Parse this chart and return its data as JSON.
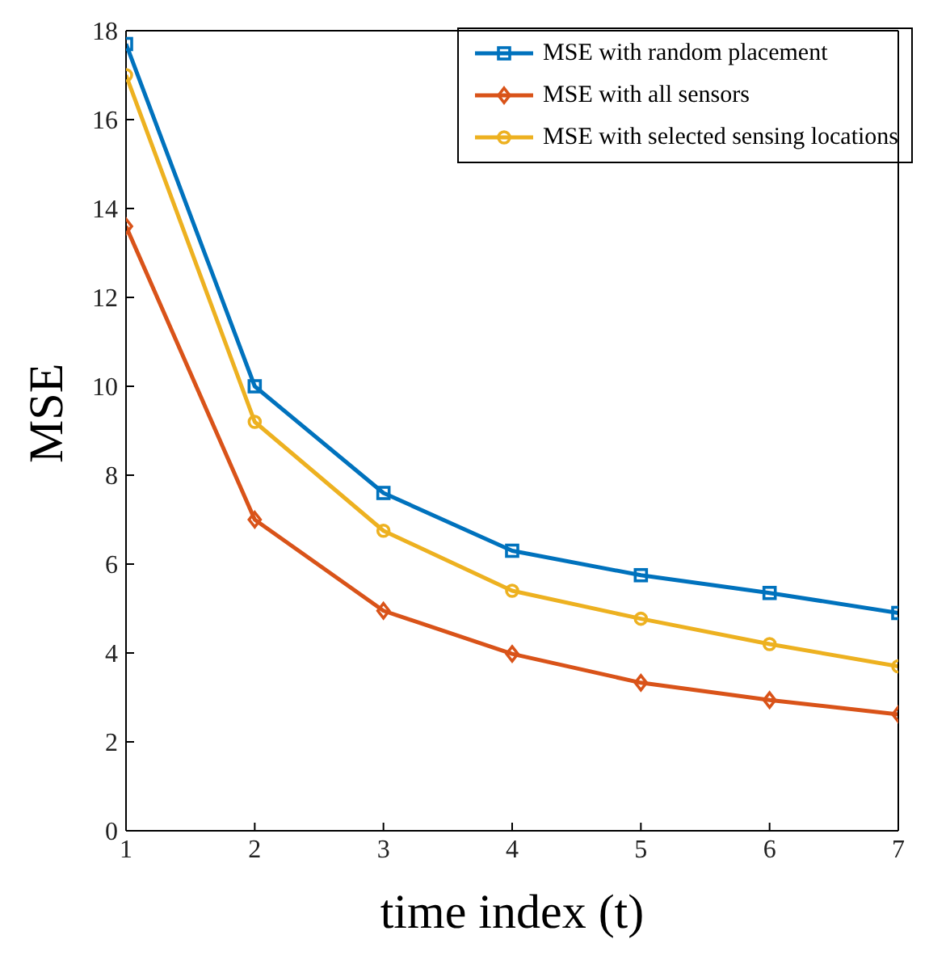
{
  "chart_data": {
    "type": "line",
    "xlabel": "time index (t)",
    "ylabel": "MSE",
    "x": [
      1,
      2,
      3,
      4,
      5,
      6,
      7
    ],
    "xlim": [
      1,
      7
    ],
    "xticks": [
      1,
      2,
      3,
      4,
      5,
      6,
      7
    ],
    "ylim": [
      0,
      18
    ],
    "yticks": [
      0,
      2,
      4,
      6,
      8,
      10,
      12,
      14,
      16,
      18
    ],
    "grid": false,
    "legend": "top right",
    "line_style": "solid",
    "series": [
      {
        "name": "MSE with random placement",
        "color": "#0072bd",
        "marker": "square",
        "values": [
          17.7,
          10.0,
          7.6,
          6.3,
          5.75,
          5.35,
          4.9
        ]
      },
      {
        "name": "MSE with all sensors",
        "color": "#d95319",
        "marker": "diamond",
        "values": [
          13.6,
          7.0,
          4.95,
          3.98,
          3.33,
          2.94,
          2.62
        ]
      },
      {
        "name": "MSE with selected sensing locations",
        "color": "#edb120",
        "marker": "circle",
        "values": [
          17.0,
          9.2,
          6.75,
          5.4,
          4.77,
          4.2,
          3.7
        ]
      }
    ]
  }
}
